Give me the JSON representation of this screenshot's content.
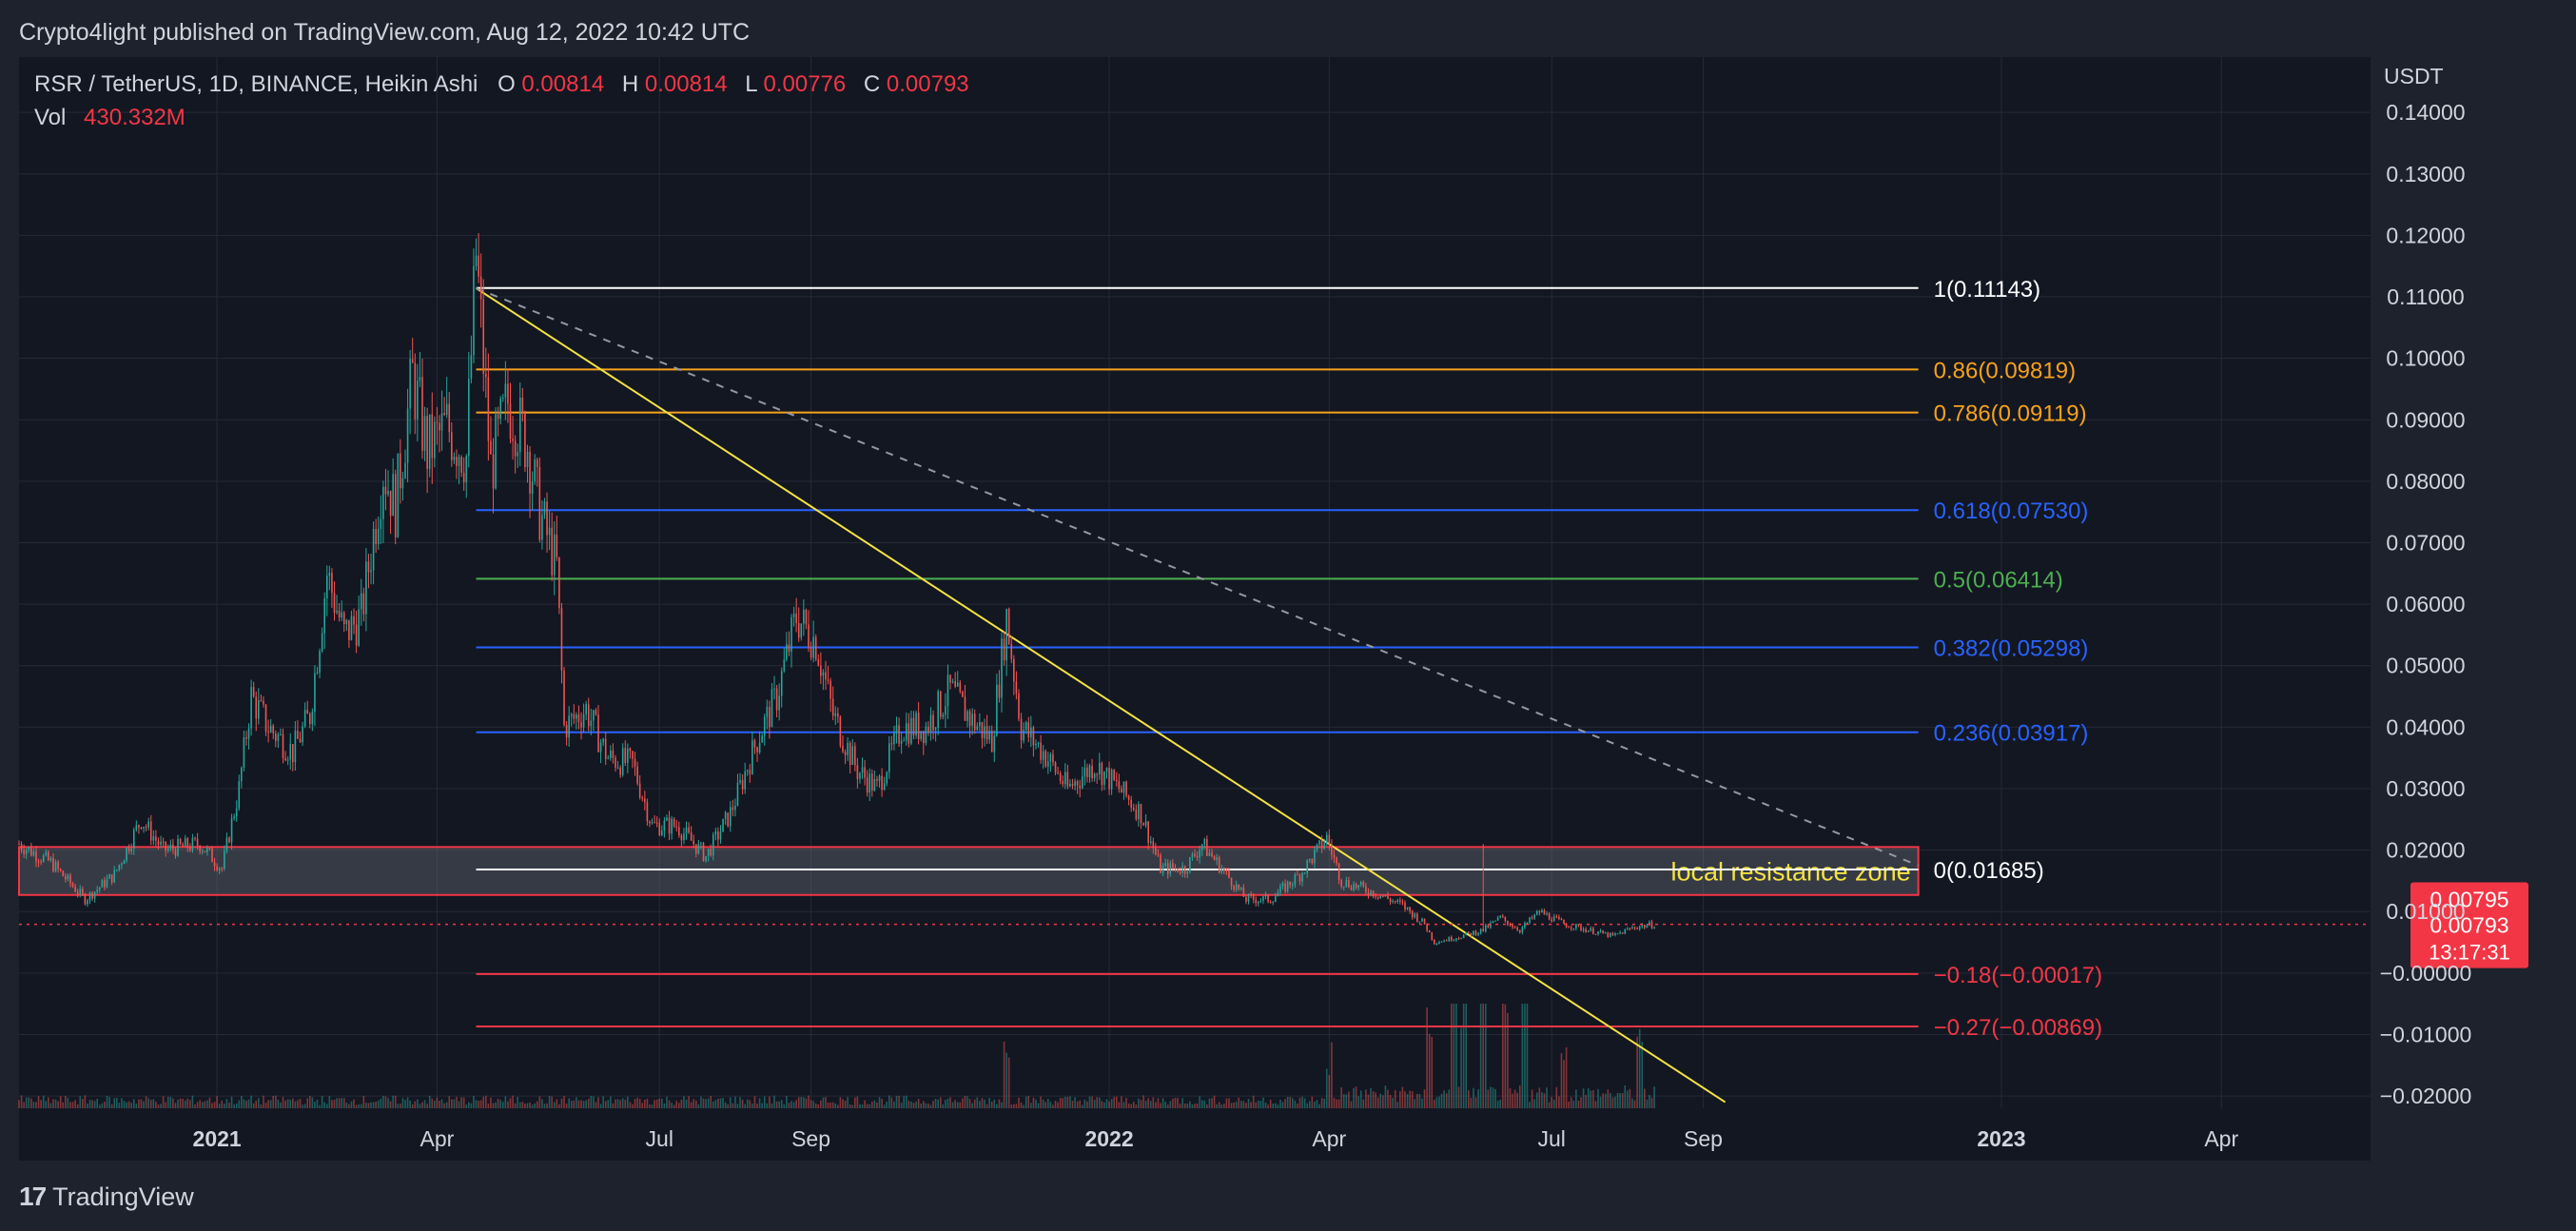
{
  "header": {
    "publisher": "Crypto4light published on TradingView.com, Aug 12, 2022 10:42 UTC"
  },
  "legend": {
    "symbol": "RSR / TetherUS, 1D, BINANCE, Heikin Ashi",
    "o_label": "O",
    "o_value": "0.00814",
    "h_label": "H",
    "h_value": "0.00814",
    "l_label": "L",
    "l_value": "0.00776",
    "c_label": "C",
    "c_value": "0.00793",
    "vol_label": "Vol",
    "vol_value": "430.332M"
  },
  "footer": {
    "brand": "TradingView"
  },
  "colors": {
    "background": "#131722",
    "panel": "#1e222d",
    "text": "#d1d4dc",
    "grid": "#252a36",
    "up": "#26a69a",
    "down": "#ef5350",
    "yellow": "#f5e242",
    "orange": "#f7a21b",
    "blue": "#2962ff",
    "green": "#4caf50",
    "white": "#ffffff",
    "red": "#f23645"
  },
  "chart_data": {
    "type": "candlestick",
    "title": "RSR / TetherUS, 1D, BINANCE, Heikin Ashi",
    "ylabel": "USDT",
    "ylim": [
      -0.022,
      0.149
    ],
    "xlim": [
      "2020-10-12",
      "2023-06-01"
    ],
    "y_ticks": [
      "0.14000",
      "0.13000",
      "0.12000",
      "0.11000",
      "0.10000",
      "0.09000",
      "0.08000",
      "0.07000",
      "0.06000",
      "0.05000",
      "0.04000",
      "0.03000",
      "0.02000",
      "0.01000",
      "−0.00000",
      "−0.01000",
      "−0.02000"
    ],
    "y_tick_values": [
      0.14,
      0.13,
      0.12,
      0.11,
      0.1,
      0.09,
      0.08,
      0.07,
      0.06,
      0.05,
      0.04,
      0.03,
      0.02,
      0.01,
      0.0,
      -0.01,
      -0.02
    ],
    "x_ticks": [
      {
        "label": "2021",
        "date": "2021-01-01",
        "bold": true
      },
      {
        "label": "Apr",
        "date": "2021-04-01",
        "bold": false
      },
      {
        "label": "Jul",
        "date": "2021-07-01",
        "bold": false
      },
      {
        "label": "Sep",
        "date": "2021-09-01",
        "bold": false
      },
      {
        "label": "2022",
        "date": "2022-01-01",
        "bold": true
      },
      {
        "label": "Apr",
        "date": "2022-04-01",
        "bold": false
      },
      {
        "label": "Jul",
        "date": "2022-07-01",
        "bold": false
      },
      {
        "label": "Sep",
        "date": "2022-09-01",
        "bold": false
      },
      {
        "label": "2023",
        "date": "2023-01-01",
        "bold": true
      },
      {
        "label": "Apr",
        "date": "2023-04-01",
        "bold": false
      }
    ],
    "price_path": [
      [
        "2020-10-12",
        0.021
      ],
      [
        "2020-10-25",
        0.018
      ],
      [
        "2020-11-08",
        0.012
      ],
      [
        "2020-11-20",
        0.016
      ],
      [
        "2020-12-01",
        0.025
      ],
      [
        "2020-12-10",
        0.02
      ],
      [
        "2020-12-25",
        0.021
      ],
      [
        "2021-01-03",
        0.017
      ],
      [
        "2021-01-10",
        0.03
      ],
      [
        "2021-01-15",
        0.045
      ],
      [
        "2021-01-22",
        0.04
      ],
      [
        "2021-02-01",
        0.036
      ],
      [
        "2021-02-08",
        0.042
      ],
      [
        "2021-02-15",
        0.065
      ],
      [
        "2021-02-22",
        0.055
      ],
      [
        "2021-03-01",
        0.058
      ],
      [
        "2021-03-10",
        0.082
      ],
      [
        "2021-03-15",
        0.076
      ],
      [
        "2021-03-22",
        0.097
      ],
      [
        "2021-03-28",
        0.085
      ],
      [
        "2021-04-05",
        0.089
      ],
      [
        "2021-04-13",
        0.084
      ],
      [
        "2021-04-17",
        0.117
      ],
      [
        "2021-04-23",
        0.082
      ],
      [
        "2021-04-30",
        0.093
      ],
      [
        "2021-05-08",
        0.086
      ],
      [
        "2021-05-13",
        0.075
      ],
      [
        "2021-05-20",
        0.066
      ],
      [
        "2021-05-23",
        0.04
      ],
      [
        "2021-06-01",
        0.043
      ],
      [
        "2021-06-10",
        0.035
      ],
      [
        "2021-06-20",
        0.034
      ],
      [
        "2021-06-28",
        0.024
      ],
      [
        "2021-07-08",
        0.024
      ],
      [
        "2021-07-20",
        0.019
      ],
      [
        "2021-07-30",
        0.026
      ],
      [
        "2021-08-10",
        0.038
      ],
      [
        "2021-08-18",
        0.045
      ],
      [
        "2021-08-26",
        0.058
      ],
      [
        "2021-09-03",
        0.054
      ],
      [
        "2021-09-10",
        0.042
      ],
      [
        "2021-09-20",
        0.033
      ],
      [
        "2021-09-28",
        0.03
      ],
      [
        "2021-10-08",
        0.04
      ],
      [
        "2021-10-18",
        0.04
      ],
      [
        "2021-10-28",
        0.046
      ],
      [
        "2021-11-06",
        0.041
      ],
      [
        "2021-11-14",
        0.038
      ],
      [
        "2021-11-20",
        0.058
      ],
      [
        "2021-11-26",
        0.04
      ],
      [
        "2021-12-05",
        0.036
      ],
      [
        "2021-12-15",
        0.03
      ],
      [
        "2021-12-26",
        0.034
      ],
      [
        "2022-01-05",
        0.03
      ],
      [
        "2022-01-14",
        0.026
      ],
      [
        "2022-01-22",
        0.017
      ],
      [
        "2022-02-01",
        0.017
      ],
      [
        "2022-02-08",
        0.021
      ],
      [
        "2022-02-18",
        0.016
      ],
      [
        "2022-02-26",
        0.012
      ],
      [
        "2022-03-08",
        0.012
      ],
      [
        "2022-03-20",
        0.016
      ],
      [
        "2022-03-31",
        0.022
      ],
      [
        "2022-04-06",
        0.015
      ],
      [
        "2022-04-20",
        0.013
      ],
      [
        "2022-05-01",
        0.011
      ],
      [
        "2022-05-10",
        0.008
      ],
      [
        "2022-05-14",
        0.005
      ],
      [
        "2022-05-25",
        0.006
      ],
      [
        "2022-06-03",
        0.007
      ],
      [
        "2022-06-10",
        0.009
      ],
      [
        "2022-06-18",
        0.007
      ],
      [
        "2022-06-26",
        0.01
      ],
      [
        "2022-07-06",
        0.008
      ],
      [
        "2022-07-16",
        0.007
      ],
      [
        "2022-07-26",
        0.006
      ],
      [
        "2022-08-04",
        0.0075
      ],
      [
        "2022-08-12",
        0.0079
      ]
    ],
    "volume_spikes": [
      [
        "2021-11-20",
        0.95
      ],
      [
        "2022-04-01",
        0.55
      ],
      [
        "2022-05-12",
        0.7
      ],
      [
        "2022-05-22",
        1.15
      ],
      [
        "2022-05-26",
        0.85
      ],
      [
        "2022-06-03",
        1.2
      ],
      [
        "2022-06-12",
        0.75
      ],
      [
        "2022-06-20",
        0.95
      ],
      [
        "2022-07-06",
        0.45
      ],
      [
        "2022-08-06",
        0.55
      ]
    ],
    "fib_start_date": "2021-04-17",
    "fib_end_date": "2022-11-28",
    "fib_levels": [
      {
        "label": "1(0.11143)",
        "value": 0.11143,
        "color": "#ffffff"
      },
      {
        "label": "0.86(0.09819)",
        "value": 0.09819,
        "color": "#f7a21b"
      },
      {
        "label": "0.786(0.09119)",
        "value": 0.09119,
        "color": "#f7a21b"
      },
      {
        "label": "0.618(0.07530)",
        "value": 0.0753,
        "color": "#2962ff"
      },
      {
        "label": "0.5(0.06414)",
        "value": 0.06414,
        "color": "#4caf50"
      },
      {
        "label": "0.382(0.05298)",
        "value": 0.05298,
        "color": "#2962ff"
      },
      {
        "label": "0.236(0.03917)",
        "value": 0.03917,
        "color": "#2962ff"
      },
      {
        "label": "0(0.01685)",
        "value": 0.01685,
        "color": "#ffffff"
      },
      {
        "label": "−0.18(−0.00017)",
        "value": -0.00017,
        "color": "#f23645"
      },
      {
        "label": "−0.27(−0.00869)",
        "value": -0.00869,
        "color": "#f23645"
      }
    ],
    "resistance_zone": {
      "label": "local resistance zone",
      "top": 0.0205,
      "bottom": 0.0127,
      "start_date": "2020-10-12",
      "end_date": "2022-11-28"
    },
    "yellow_trendline": {
      "start": [
        "2021-04-17",
        0.1114
      ],
      "end": [
        "2022-09-10",
        -0.021
      ]
    },
    "dashed_trendline": {
      "start": [
        "2021-04-17",
        0.1114
      ],
      "end": [
        "2022-11-28",
        0.0175
      ]
    },
    "current_price": {
      "label": "0.00793",
      "value": 0.00793,
      "timer": "13:17:31"
    },
    "prev_price": {
      "label": "0.00795",
      "value": 0.00795
    }
  }
}
